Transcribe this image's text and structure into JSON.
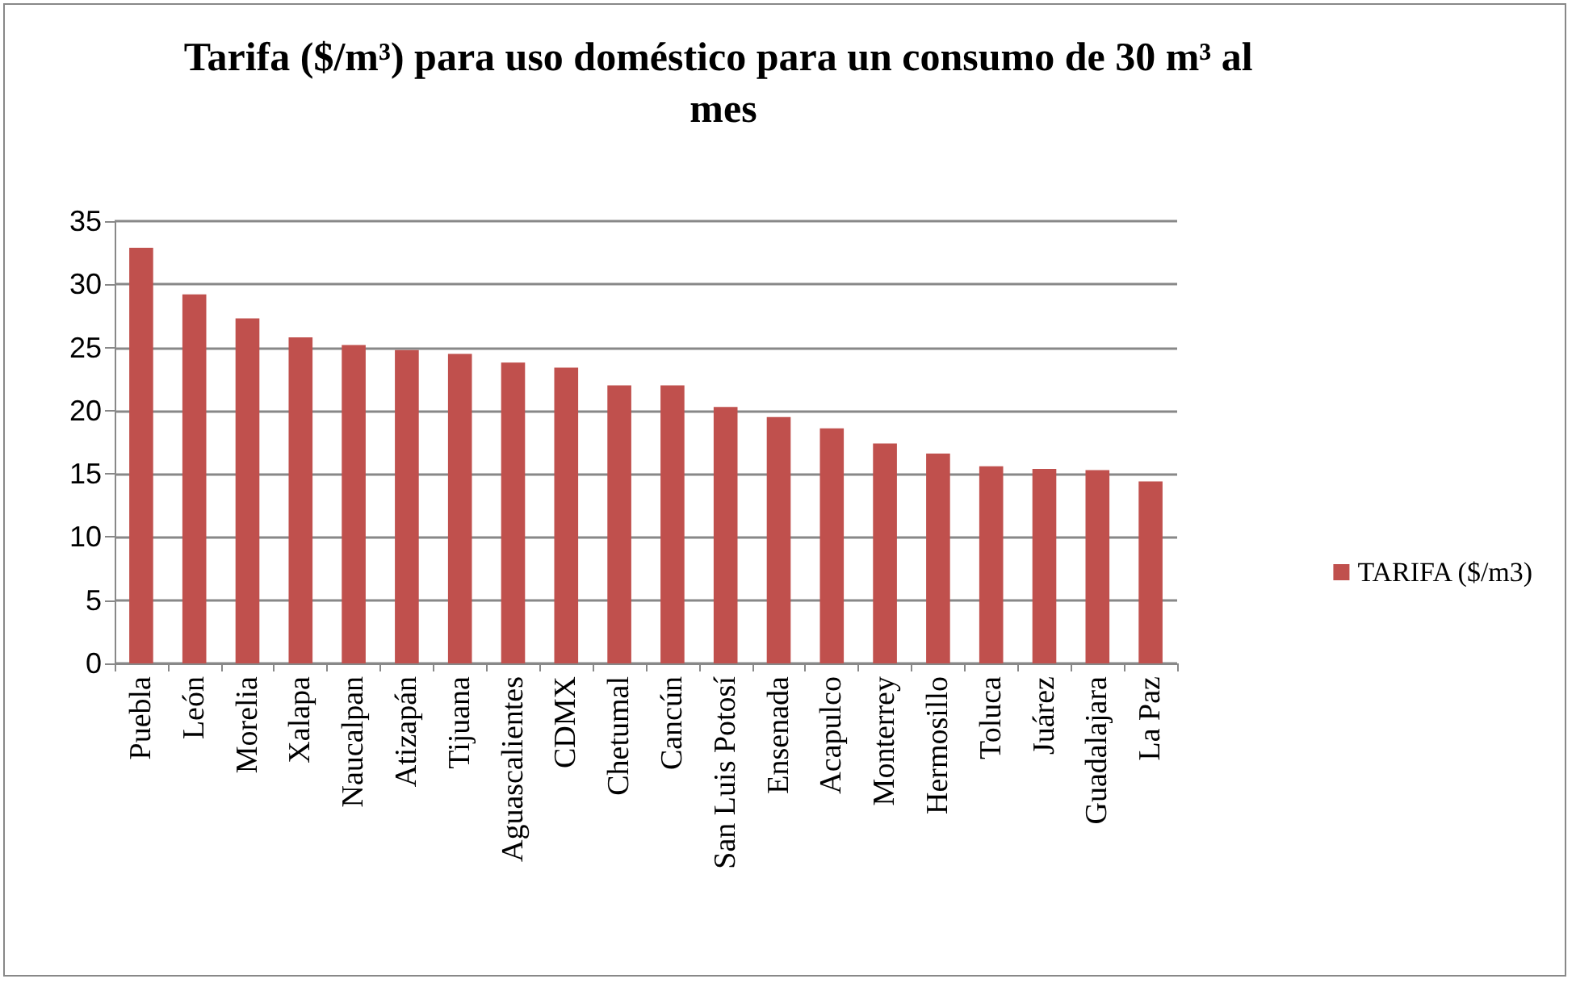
{
  "chart_data": {
    "type": "bar",
    "title": "Tarifa ($/m³) para uso doméstico para un consumo de 30 m³ al mes",
    "categories": [
      "Puebla",
      "León",
      "Morelia",
      "Xalapa",
      "Naucalpan",
      "Atizapán",
      "Tijuana",
      "Aguascalientes",
      "CDMX",
      "Chetumal",
      "Cancún",
      "San Luis Potosí",
      "Ensenada",
      "Acapulco",
      "Monterrey",
      "Hermosillo",
      "Toluca",
      "Juárez",
      "Guadalajara",
      "La Paz"
    ],
    "series": [
      {
        "name": "TARIFA ($/m3)",
        "color": "#c0504d",
        "values": [
          32.9,
          29.2,
          27.3,
          25.8,
          25.2,
          24.8,
          24.5,
          23.8,
          23.4,
          22.0,
          22.0,
          20.3,
          19.5,
          18.6,
          17.4,
          16.6,
          15.6,
          15.4,
          15.3,
          14.4
        ]
      }
    ],
    "ylim": [
      0,
      35
    ],
    "yticks": [
      0,
      5,
      10,
      15,
      20,
      25,
      30,
      35
    ],
    "grid": "y",
    "legend": "right"
  }
}
